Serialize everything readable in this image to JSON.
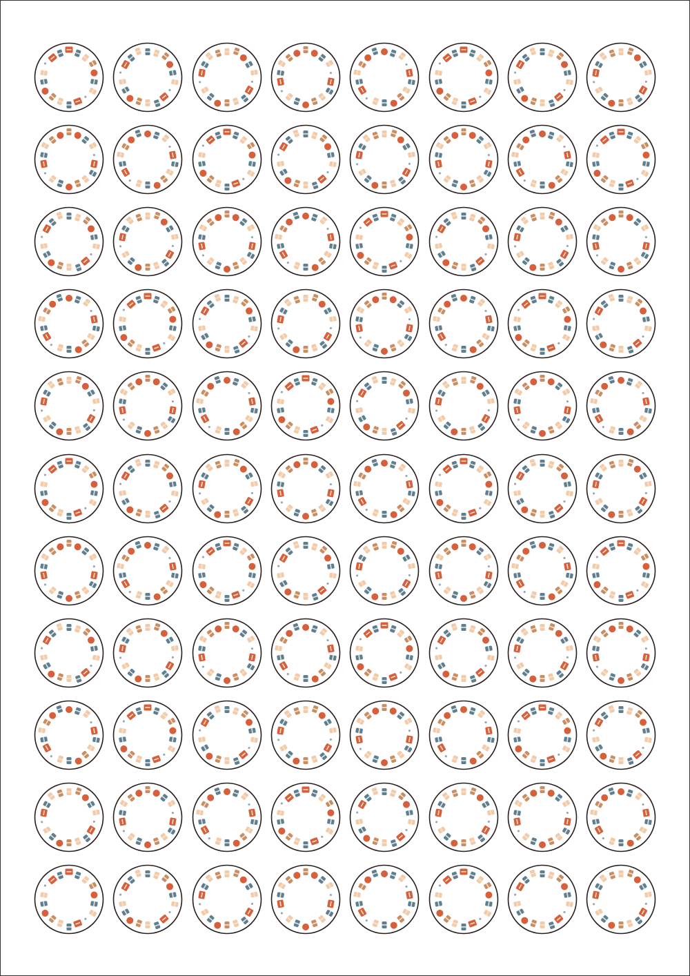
{
  "sheet": {
    "columns": 8,
    "rows": 11,
    "colors": {
      "outline": "#2a1f1f",
      "rust": "#d6603c",
      "slate": "#5b7f93",
      "peach": "#f3cba9",
      "tan": "#c98d62",
      "cream": "#f6e3d1",
      "grey": "#9aa7ae"
    },
    "motif_icons": [
      "sweater-icon",
      "mitten-icon",
      "sock-icon",
      "beanie-icon",
      "yarn-ball-icon",
      "boot-icon",
      "scarf-icon",
      "snowflake-icon"
    ]
  }
}
